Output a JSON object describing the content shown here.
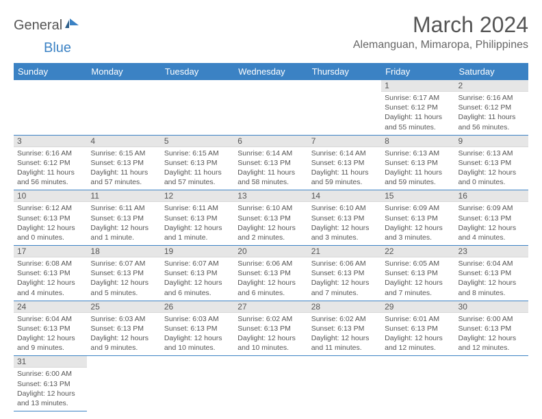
{
  "logo": {
    "part1": "General",
    "part2": "Blue"
  },
  "title": "March 2024",
  "location": "Alemanguan, Mimaropa, Philippines",
  "colors": {
    "header_bg": "#3b82c4",
    "header_text": "#ffffff",
    "daynum_bg": "#e6e6e6",
    "border": "#3b82c4",
    "text": "#555555"
  },
  "day_headers": [
    "Sunday",
    "Monday",
    "Tuesday",
    "Wednesday",
    "Thursday",
    "Friday",
    "Saturday"
  ],
  "leading_blanks": 5,
  "days": [
    {
      "n": 1,
      "sunrise": "6:17 AM",
      "sunset": "6:12 PM",
      "daylight": "11 hours and 55 minutes."
    },
    {
      "n": 2,
      "sunrise": "6:16 AM",
      "sunset": "6:12 PM",
      "daylight": "11 hours and 56 minutes."
    },
    {
      "n": 3,
      "sunrise": "6:16 AM",
      "sunset": "6:12 PM",
      "daylight": "11 hours and 56 minutes."
    },
    {
      "n": 4,
      "sunrise": "6:15 AM",
      "sunset": "6:13 PM",
      "daylight": "11 hours and 57 minutes."
    },
    {
      "n": 5,
      "sunrise": "6:15 AM",
      "sunset": "6:13 PM",
      "daylight": "11 hours and 57 minutes."
    },
    {
      "n": 6,
      "sunrise": "6:14 AM",
      "sunset": "6:13 PM",
      "daylight": "11 hours and 58 minutes."
    },
    {
      "n": 7,
      "sunrise": "6:14 AM",
      "sunset": "6:13 PM",
      "daylight": "11 hours and 59 minutes."
    },
    {
      "n": 8,
      "sunrise": "6:13 AM",
      "sunset": "6:13 PM",
      "daylight": "11 hours and 59 minutes."
    },
    {
      "n": 9,
      "sunrise": "6:13 AM",
      "sunset": "6:13 PM",
      "daylight": "12 hours and 0 minutes."
    },
    {
      "n": 10,
      "sunrise": "6:12 AM",
      "sunset": "6:13 PM",
      "daylight": "12 hours and 0 minutes."
    },
    {
      "n": 11,
      "sunrise": "6:11 AM",
      "sunset": "6:13 PM",
      "daylight": "12 hours and 1 minute."
    },
    {
      "n": 12,
      "sunrise": "6:11 AM",
      "sunset": "6:13 PM",
      "daylight": "12 hours and 1 minute."
    },
    {
      "n": 13,
      "sunrise": "6:10 AM",
      "sunset": "6:13 PM",
      "daylight": "12 hours and 2 minutes."
    },
    {
      "n": 14,
      "sunrise": "6:10 AM",
      "sunset": "6:13 PM",
      "daylight": "12 hours and 3 minutes."
    },
    {
      "n": 15,
      "sunrise": "6:09 AM",
      "sunset": "6:13 PM",
      "daylight": "12 hours and 3 minutes."
    },
    {
      "n": 16,
      "sunrise": "6:09 AM",
      "sunset": "6:13 PM",
      "daylight": "12 hours and 4 minutes."
    },
    {
      "n": 17,
      "sunrise": "6:08 AM",
      "sunset": "6:13 PM",
      "daylight": "12 hours and 4 minutes."
    },
    {
      "n": 18,
      "sunrise": "6:07 AM",
      "sunset": "6:13 PM",
      "daylight": "12 hours and 5 minutes."
    },
    {
      "n": 19,
      "sunrise": "6:07 AM",
      "sunset": "6:13 PM",
      "daylight": "12 hours and 6 minutes."
    },
    {
      "n": 20,
      "sunrise": "6:06 AM",
      "sunset": "6:13 PM",
      "daylight": "12 hours and 6 minutes."
    },
    {
      "n": 21,
      "sunrise": "6:06 AM",
      "sunset": "6:13 PM",
      "daylight": "12 hours and 7 minutes."
    },
    {
      "n": 22,
      "sunrise": "6:05 AM",
      "sunset": "6:13 PM",
      "daylight": "12 hours and 7 minutes."
    },
    {
      "n": 23,
      "sunrise": "6:04 AM",
      "sunset": "6:13 PM",
      "daylight": "12 hours and 8 minutes."
    },
    {
      "n": 24,
      "sunrise": "6:04 AM",
      "sunset": "6:13 PM",
      "daylight": "12 hours and 9 minutes."
    },
    {
      "n": 25,
      "sunrise": "6:03 AM",
      "sunset": "6:13 PM",
      "daylight": "12 hours and 9 minutes."
    },
    {
      "n": 26,
      "sunrise": "6:03 AM",
      "sunset": "6:13 PM",
      "daylight": "12 hours and 10 minutes."
    },
    {
      "n": 27,
      "sunrise": "6:02 AM",
      "sunset": "6:13 PM",
      "daylight": "12 hours and 10 minutes."
    },
    {
      "n": 28,
      "sunrise": "6:02 AM",
      "sunset": "6:13 PM",
      "daylight": "12 hours and 11 minutes."
    },
    {
      "n": 29,
      "sunrise": "6:01 AM",
      "sunset": "6:13 PM",
      "daylight": "12 hours and 12 minutes."
    },
    {
      "n": 30,
      "sunrise": "6:00 AM",
      "sunset": "6:13 PM",
      "daylight": "12 hours and 12 minutes."
    },
    {
      "n": 31,
      "sunrise": "6:00 AM",
      "sunset": "6:13 PM",
      "daylight": "12 hours and 13 minutes."
    }
  ],
  "labels": {
    "sunrise": "Sunrise:",
    "sunset": "Sunset:",
    "daylight": "Daylight:"
  }
}
